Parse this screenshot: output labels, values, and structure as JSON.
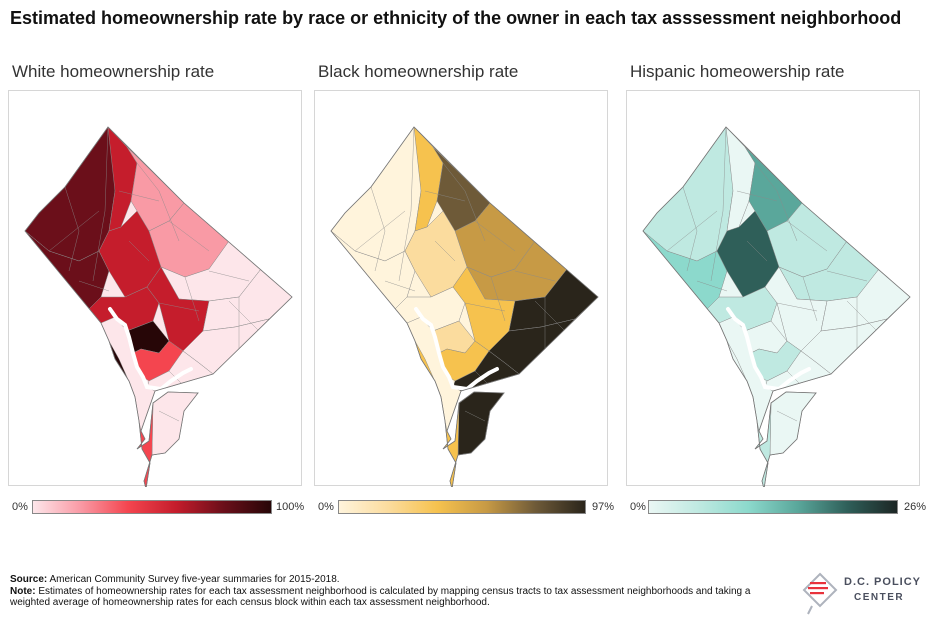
{
  "title": "Estimated homeownership rate by race or ethnicity of the owner in each tax asssessment neighborhood",
  "panels": [
    {
      "label": "White homeownership rate",
      "legend_min": "0%",
      "legend_max": "100%",
      "max_value": 100,
      "colors": [
        "#fde6ea",
        "#f99aa5",
        "#f4454f",
        "#c51d2c",
        "#6b0f1a",
        "#270607"
      ]
    },
    {
      "label": "Black homeownership rate",
      "legend_min": "0%",
      "legend_max": "97%",
      "max_value": 97,
      "colors": [
        "#fff4dc",
        "#fbdc9e",
        "#f6c24e",
        "#c79a45",
        "#6e5a38",
        "#2a251b"
      ]
    },
    {
      "label": "Hispanic homeowership rate",
      "legend_min": "0%",
      "legend_max": "26%",
      "max_value": 26,
      "colors": [
        "#eaf7f4",
        "#bfe9e1",
        "#8cd9cc",
        "#5aa79b",
        "#2f5f59",
        "#1c2624"
      ]
    }
  ],
  "footer": {
    "source_label": "Source:",
    "source_text": "American Community Survey five-year summaries for 2015-2018.",
    "note_label": "Note:",
    "note_text": "Estimates of homeownership rates for each tax assessment neighborhood is calculated by mapping census tracts to tax assessment neighborhoods and taking a weighted average of homeownership rates for each census block within each tax assessment neighborhood."
  },
  "logo": {
    "line1": "D.C. POLICY",
    "line2": "CENTER",
    "icon": "dc-map-flag-icon"
  }
}
